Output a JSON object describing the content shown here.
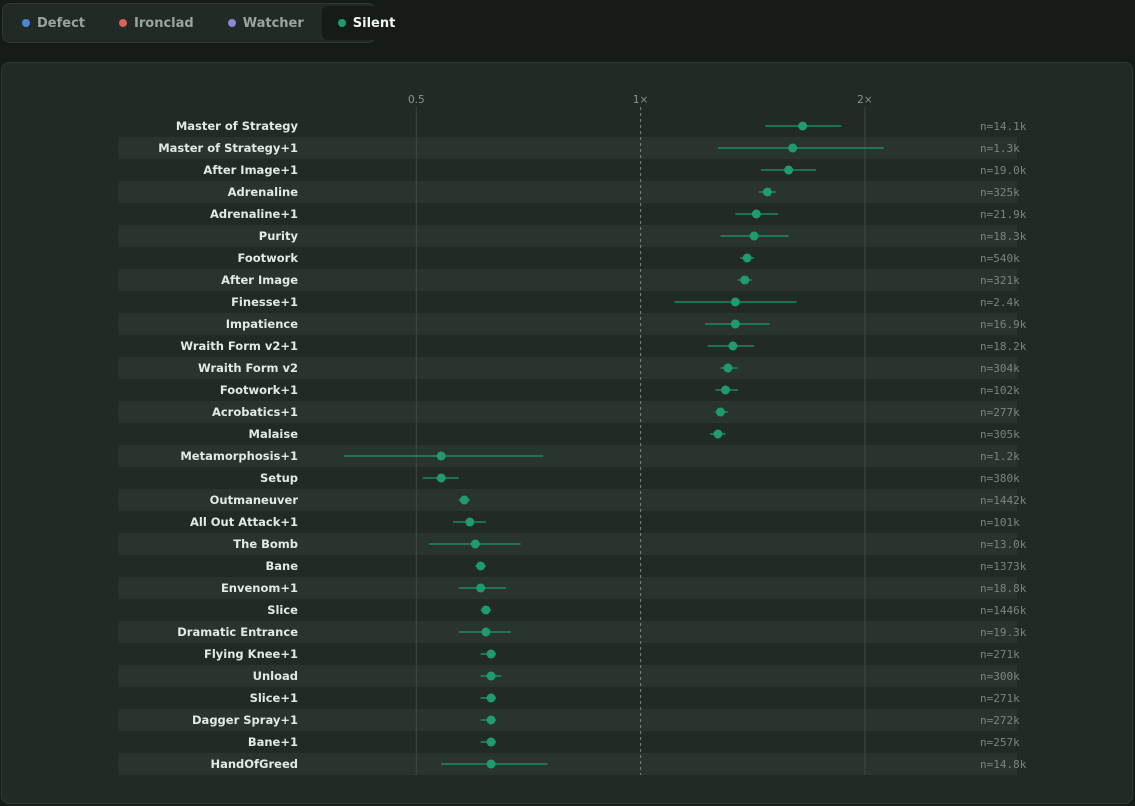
{
  "tabs": [
    {
      "label": "Defect",
      "color": "#4a86d6",
      "active": false
    },
    {
      "label": "Ironclad",
      "color": "#d9625b",
      "active": false
    },
    {
      "label": "Watcher",
      "color": "#8f86d8",
      "active": false
    },
    {
      "label": "Silent",
      "color": "#1f9b6c",
      "active": true
    }
  ],
  "chart_data": {
    "type": "forest-plot",
    "x_scale": "log",
    "xlim": [
      0.25,
      3.2
    ],
    "ticks": [
      {
        "value": 0.5,
        "label": "0.5",
        "style": "solid"
      },
      {
        "value": 1,
        "label": "1×",
        "style": "dashed"
      },
      {
        "value": 2,
        "label": "2×",
        "style": "solid"
      }
    ],
    "point_color": "#1f9b6c",
    "rows": [
      {
        "label": "Master of Strategy",
        "n": "n=14.1k",
        "est": 1.65,
        "lo": 1.47,
        "hi": 1.86
      },
      {
        "label": "Master of Strategy+1",
        "n": "n=1.3k",
        "est": 1.6,
        "lo": 1.27,
        "hi": 2.12
      },
      {
        "label": "After Image+1",
        "n": "n=19.0k",
        "est": 1.58,
        "lo": 1.45,
        "hi": 1.72
      },
      {
        "label": "Adrenaline",
        "n": "n=325k",
        "est": 1.48,
        "lo": 1.44,
        "hi": 1.52
      },
      {
        "label": "Adrenaline+1",
        "n": "n=21.9k",
        "est": 1.43,
        "lo": 1.34,
        "hi": 1.53
      },
      {
        "label": "Purity",
        "n": "n=18.3k",
        "est": 1.42,
        "lo": 1.28,
        "hi": 1.58
      },
      {
        "label": "Footwork",
        "n": "n=540k",
        "est": 1.39,
        "lo": 1.36,
        "hi": 1.42
      },
      {
        "label": "After Image",
        "n": "n=321k",
        "est": 1.38,
        "lo": 1.35,
        "hi": 1.41
      },
      {
        "label": "Finesse+1",
        "n": "n=2.4k",
        "est": 1.34,
        "lo": 1.11,
        "hi": 1.62
      },
      {
        "label": "Impatience",
        "n": "n=16.9k",
        "est": 1.34,
        "lo": 1.22,
        "hi": 1.49
      },
      {
        "label": "Wraith Form v2+1",
        "n": "n=18.2k",
        "est": 1.33,
        "lo": 1.23,
        "hi": 1.42
      },
      {
        "label": "Wraith Form v2",
        "n": "n=304k",
        "est": 1.31,
        "lo": 1.28,
        "hi": 1.35
      },
      {
        "label": "Footwork+1",
        "n": "n=102k",
        "est": 1.3,
        "lo": 1.26,
        "hi": 1.35
      },
      {
        "label": "Acrobatics+1",
        "n": "n=277k",
        "est": 1.28,
        "lo": 1.26,
        "hi": 1.31
      },
      {
        "label": "Malaise",
        "n": "n=305k",
        "est": 1.27,
        "lo": 1.24,
        "hi": 1.3
      },
      {
        "label": "Metamorphosis+1",
        "n": "n=1.2k",
        "est": 0.54,
        "lo": 0.4,
        "hi": 0.74
      },
      {
        "label": "Setup",
        "n": "n=380k",
        "est": 0.54,
        "lo": 0.51,
        "hi": 0.57
      },
      {
        "label": "Outmaneuver",
        "n": "n=1442k",
        "est": 0.58,
        "lo": 0.57,
        "hi": 0.59
      },
      {
        "label": "All Out Attack+1",
        "n": "n=101k",
        "est": 0.59,
        "lo": 0.56,
        "hi": 0.62
      },
      {
        "label": "The Bomb",
        "n": "n=13.0k",
        "est": 0.6,
        "lo": 0.52,
        "hi": 0.69
      },
      {
        "label": "Bane",
        "n": "n=1373k",
        "est": 0.61,
        "lo": 0.6,
        "hi": 0.62
      },
      {
        "label": "Envenom+1",
        "n": "n=18.8k",
        "est": 0.61,
        "lo": 0.57,
        "hi": 0.66
      },
      {
        "label": "Slice",
        "n": "n=1446k",
        "est": 0.62,
        "lo": 0.61,
        "hi": 0.63
      },
      {
        "label": "Dramatic Entrance",
        "n": "n=19.3k",
        "est": 0.62,
        "lo": 0.57,
        "hi": 0.67
      },
      {
        "label": "Flying Knee+1",
        "n": "n=271k",
        "est": 0.63,
        "lo": 0.61,
        "hi": 0.64
      },
      {
        "label": "Unload",
        "n": "n=300k",
        "est": 0.63,
        "lo": 0.61,
        "hi": 0.65
      },
      {
        "label": "Slice+1",
        "n": "n=271k",
        "est": 0.63,
        "lo": 0.61,
        "hi": 0.64
      },
      {
        "label": "Dagger Spray+1",
        "n": "n=272k",
        "est": 0.63,
        "lo": 0.61,
        "hi": 0.64
      },
      {
        "label": "Bane+1",
        "n": "n=257k",
        "est": 0.63,
        "lo": 0.61,
        "hi": 0.64
      },
      {
        "label": "HandOfGreed",
        "n": "n=14.8k",
        "est": 0.63,
        "lo": 0.54,
        "hi": 0.75
      }
    ]
  }
}
